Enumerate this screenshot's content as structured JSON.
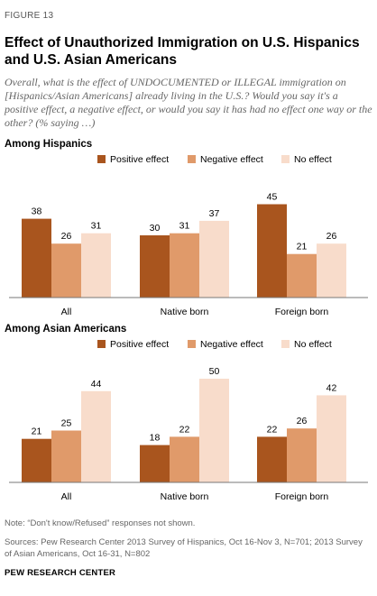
{
  "figure_label": "FIGURE 13",
  "title": "Effect of Unauthorized Immigration on U.S. Hispanics and U.S. Asian Americans",
  "subtitle": "Overall, what is the effect of UNDOCUMENTED or ILLEGAL immigration on [Hispanics/Asian Americans] already living in the U.S.? Would you say it's a positive effect, a negative effect, or would you say it has had no effect one way or the other? (% saying …)",
  "colors": {
    "positive": "#a9551e",
    "negative": "#e09a6a",
    "none": "#f8dccb",
    "axis": "#777777"
  },
  "chart_data": [
    {
      "type": "bar",
      "title": "Among Hispanics",
      "categories": [
        "All",
        "Native born",
        "Foreign born"
      ],
      "series": [
        {
          "name": "Positive effect",
          "values": [
            38,
            30,
            45
          ]
        },
        {
          "name": "Negative effect",
          "values": [
            26,
            31,
            21
          ]
        },
        {
          "name": "No effect",
          "values": [
            31,
            37,
            26
          ]
        }
      ],
      "ylim": [
        0,
        50
      ],
      "legend": "top-right",
      "grid": false
    },
    {
      "type": "bar",
      "title": "Among Asian Americans",
      "categories": [
        "All",
        "Native born",
        "Foreign born"
      ],
      "series": [
        {
          "name": "Positive effect",
          "values": [
            21,
            18,
            22
          ]
        },
        {
          "name": "Negative effect",
          "values": [
            25,
            22,
            26
          ]
        },
        {
          "name": "No effect",
          "values": [
            44,
            50,
            42
          ]
        }
      ],
      "ylim": [
        0,
        50
      ],
      "legend": "top-right",
      "grid": false
    }
  ],
  "note": "Note: “Don't know/Refused” responses not shown.",
  "sources": "Sources: Pew Research Center 2013 Survey of Hispanics, Oct 16-Nov 3, N=701; 2013 Survey of Asian Americans, Oct 16-31, N=802",
  "credit": "PEW RESEARCH CENTER"
}
